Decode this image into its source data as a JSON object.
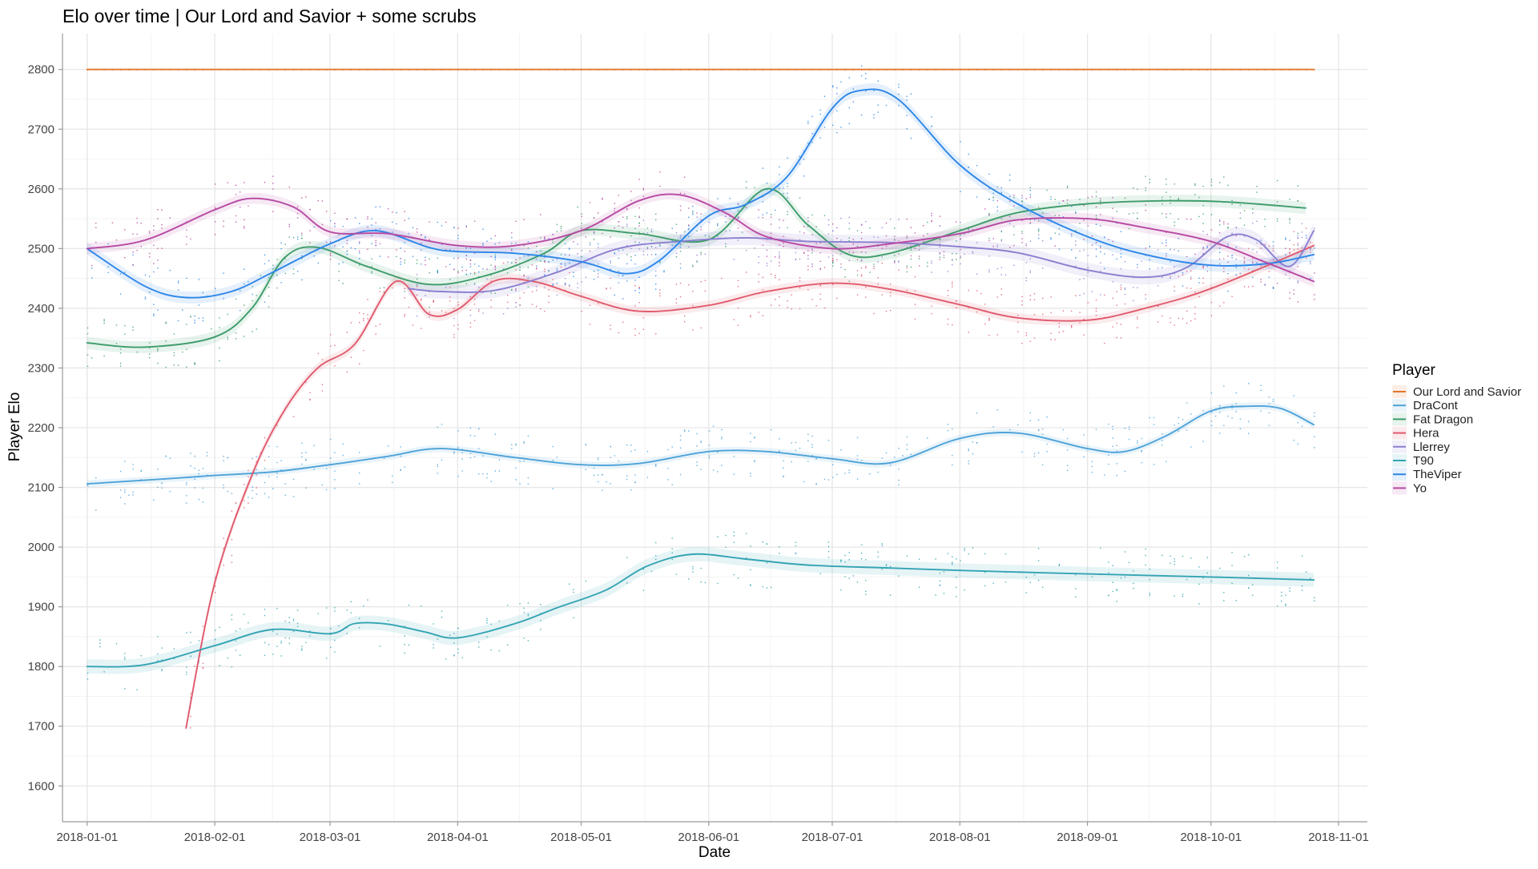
{
  "chart_data": {
    "type": "line",
    "title": "Elo over time | Our Lord and Savior + some scrubs",
    "xlabel": "Date",
    "ylabel": "Player Elo",
    "xlim": [
      "2017-12-26",
      "2018-11-08"
    ],
    "ylim": [
      1540,
      2860
    ],
    "x_ticks": [
      "2018-01-01",
      "2018-02-01",
      "2018-03-01",
      "2018-04-01",
      "2018-05-01",
      "2018-06-01",
      "2018-07-01",
      "2018-08-01",
      "2018-09-01",
      "2018-10-01",
      "2018-11-01"
    ],
    "y_ticks": [
      1600,
      1700,
      1800,
      1900,
      2000,
      2100,
      2200,
      2300,
      2400,
      2500,
      2600,
      2700,
      2800
    ],
    "grid": true,
    "legend": {
      "title": "Player",
      "position": "right"
    },
    "series": [
      {
        "name": "Our Lord and Savior",
        "color": "#E7752B",
        "band": 0,
        "points": [
          [
            "2018-01-01",
            2800
          ],
          [
            "2018-10-26",
            2800
          ]
        ]
      },
      {
        "name": "DraCont",
        "color": "#4EA2D9",
        "band": 6,
        "points": [
          [
            "2018-01-01",
            2106
          ],
          [
            "2018-01-15",
            2112
          ],
          [
            "2018-02-01",
            2120
          ],
          [
            "2018-02-15",
            2126
          ],
          [
            "2018-03-01",
            2138
          ],
          [
            "2018-03-15",
            2152
          ],
          [
            "2018-03-28",
            2165
          ],
          [
            "2018-04-15",
            2150
          ],
          [
            "2018-05-01",
            2138
          ],
          [
            "2018-05-15",
            2140
          ],
          [
            "2018-06-01",
            2160
          ],
          [
            "2018-06-15",
            2160
          ],
          [
            "2018-07-01",
            2148
          ],
          [
            "2018-07-15",
            2141
          ],
          [
            "2018-08-01",
            2182
          ],
          [
            "2018-08-15",
            2191
          ],
          [
            "2018-09-01",
            2165
          ],
          [
            "2018-09-10",
            2160
          ],
          [
            "2018-09-20",
            2186
          ],
          [
            "2018-10-01",
            2228
          ],
          [
            "2018-10-10",
            2236
          ],
          [
            "2018-10-18",
            2232
          ],
          [
            "2018-10-26",
            2205
          ]
        ]
      },
      {
        "name": "Fat Dragon",
        "color": "#3D9C6A",
        "band": 10,
        "points": [
          [
            "2018-01-01",
            2342
          ],
          [
            "2018-01-15",
            2335
          ],
          [
            "2018-02-01",
            2352
          ],
          [
            "2018-02-10",
            2400
          ],
          [
            "2018-02-18",
            2485
          ],
          [
            "2018-02-26",
            2502
          ],
          [
            "2018-03-10",
            2470
          ],
          [
            "2018-03-25",
            2440
          ],
          [
            "2018-04-08",
            2455
          ],
          [
            "2018-04-22",
            2492
          ],
          [
            "2018-05-01",
            2530
          ],
          [
            "2018-05-15",
            2525
          ],
          [
            "2018-06-01",
            2515
          ],
          [
            "2018-06-15",
            2600
          ],
          [
            "2018-06-25",
            2540
          ],
          [
            "2018-07-05",
            2490
          ],
          [
            "2018-07-15",
            2492
          ],
          [
            "2018-08-01",
            2530
          ],
          [
            "2018-08-15",
            2560
          ],
          [
            "2018-09-01",
            2575
          ],
          [
            "2018-09-20",
            2580
          ],
          [
            "2018-10-05",
            2578
          ],
          [
            "2018-10-24",
            2568
          ]
        ]
      },
      {
        "name": "Hera",
        "color": "#E05A6D",
        "band": 8,
        "points": [
          [
            "2018-01-25",
            1697
          ],
          [
            "2018-02-01",
            1940
          ],
          [
            "2018-02-10",
            2120
          ],
          [
            "2018-02-18",
            2230
          ],
          [
            "2018-02-26",
            2300
          ],
          [
            "2018-03-07",
            2340
          ],
          [
            "2018-03-17",
            2445
          ],
          [
            "2018-03-25",
            2390
          ],
          [
            "2018-04-01",
            2398
          ],
          [
            "2018-04-10",
            2446
          ],
          [
            "2018-04-20",
            2444
          ],
          [
            "2018-05-01",
            2420
          ],
          [
            "2018-05-15",
            2395
          ],
          [
            "2018-06-01",
            2405
          ],
          [
            "2018-06-15",
            2428
          ],
          [
            "2018-07-01",
            2442
          ],
          [
            "2018-07-15",
            2432
          ],
          [
            "2018-08-01",
            2406
          ],
          [
            "2018-08-15",
            2384
          ],
          [
            "2018-09-01",
            2380
          ],
          [
            "2018-09-15",
            2400
          ],
          [
            "2018-10-01",
            2433
          ],
          [
            "2018-10-26",
            2505
          ]
        ]
      },
      {
        "name": "Llerrey",
        "color": "#8A7FD0",
        "band": 12,
        "points": [
          [
            "2018-03-20",
            2433
          ],
          [
            "2018-03-28",
            2428
          ],
          [
            "2018-04-10",
            2430
          ],
          [
            "2018-04-25",
            2460
          ],
          [
            "2018-05-10",
            2500
          ],
          [
            "2018-05-25",
            2512
          ],
          [
            "2018-06-10",
            2518
          ],
          [
            "2018-06-25",
            2512
          ],
          [
            "2018-07-15",
            2510
          ],
          [
            "2018-08-01",
            2503
          ],
          [
            "2018-08-15",
            2493
          ],
          [
            "2018-09-01",
            2464
          ],
          [
            "2018-09-15",
            2452
          ],
          [
            "2018-09-25",
            2468
          ],
          [
            "2018-10-05",
            2520
          ],
          [
            "2018-10-12",
            2515
          ],
          [
            "2018-10-20",
            2470
          ],
          [
            "2018-10-26",
            2530
          ]
        ]
      },
      {
        "name": "T90",
        "color": "#34A4B3",
        "band": 12,
        "points": [
          [
            "2018-01-01",
            1800
          ],
          [
            "2018-01-15",
            1803
          ],
          [
            "2018-02-01",
            1835
          ],
          [
            "2018-02-15",
            1862
          ],
          [
            "2018-03-01",
            1855
          ],
          [
            "2018-03-07",
            1872
          ],
          [
            "2018-03-15",
            1871
          ],
          [
            "2018-03-24",
            1858
          ],
          [
            "2018-04-01",
            1848
          ],
          [
            "2018-04-15",
            1872
          ],
          [
            "2018-04-25",
            1898
          ],
          [
            "2018-05-07",
            1928
          ],
          [
            "2018-05-17",
            1968
          ],
          [
            "2018-05-28",
            1988
          ],
          [
            "2018-06-10",
            1980
          ],
          [
            "2018-06-25",
            1970
          ],
          [
            "2018-07-15",
            1965
          ],
          [
            "2018-08-01",
            1961
          ],
          [
            "2018-09-01",
            1955
          ],
          [
            "2018-10-01",
            1950
          ],
          [
            "2018-10-26",
            1945
          ]
        ]
      },
      {
        "name": "TheViper",
        "color": "#2D86E8",
        "band": 10,
        "points": [
          [
            "2018-01-01",
            2500
          ],
          [
            "2018-01-15",
            2437
          ],
          [
            "2018-01-25",
            2418
          ],
          [
            "2018-02-05",
            2428
          ],
          [
            "2018-02-15",
            2460
          ],
          [
            "2018-03-01",
            2508
          ],
          [
            "2018-03-12",
            2530
          ],
          [
            "2018-03-25",
            2502
          ],
          [
            "2018-04-01",
            2495
          ],
          [
            "2018-04-15",
            2492
          ],
          [
            "2018-05-01",
            2478
          ],
          [
            "2018-05-12",
            2458
          ],
          [
            "2018-05-20",
            2480
          ],
          [
            "2018-06-01",
            2555
          ],
          [
            "2018-06-10",
            2574
          ],
          [
            "2018-06-20",
            2620
          ],
          [
            "2018-07-01",
            2735
          ],
          [
            "2018-07-08",
            2765
          ],
          [
            "2018-07-17",
            2750
          ],
          [
            "2018-08-01",
            2640
          ],
          [
            "2018-08-15",
            2575
          ],
          [
            "2018-09-01",
            2520
          ],
          [
            "2018-09-15",
            2490
          ],
          [
            "2018-10-01",
            2472
          ],
          [
            "2018-10-15",
            2475
          ],
          [
            "2018-10-26",
            2490
          ]
        ]
      },
      {
        "name": "Yo",
        "color": "#B748A2",
        "band": 9,
        "points": [
          [
            "2018-01-01",
            2500
          ],
          [
            "2018-01-15",
            2514
          ],
          [
            "2018-02-01",
            2565
          ],
          [
            "2018-02-10",
            2584
          ],
          [
            "2018-02-20",
            2570
          ],
          [
            "2018-03-01",
            2528
          ],
          [
            "2018-03-15",
            2525
          ],
          [
            "2018-04-01",
            2505
          ],
          [
            "2018-04-15",
            2505
          ],
          [
            "2018-05-01",
            2530
          ],
          [
            "2018-05-15",
            2580
          ],
          [
            "2018-05-25",
            2590
          ],
          [
            "2018-06-05",
            2560
          ],
          [
            "2018-06-15",
            2520
          ],
          [
            "2018-07-01",
            2500
          ],
          [
            "2018-07-15",
            2508
          ],
          [
            "2018-08-01",
            2525
          ],
          [
            "2018-08-15",
            2548
          ],
          [
            "2018-09-01",
            2550
          ],
          [
            "2018-09-15",
            2535
          ],
          [
            "2018-10-01",
            2512
          ],
          [
            "2018-10-15",
            2475
          ],
          [
            "2018-10-26",
            2445
          ]
        ]
      }
    ]
  }
}
